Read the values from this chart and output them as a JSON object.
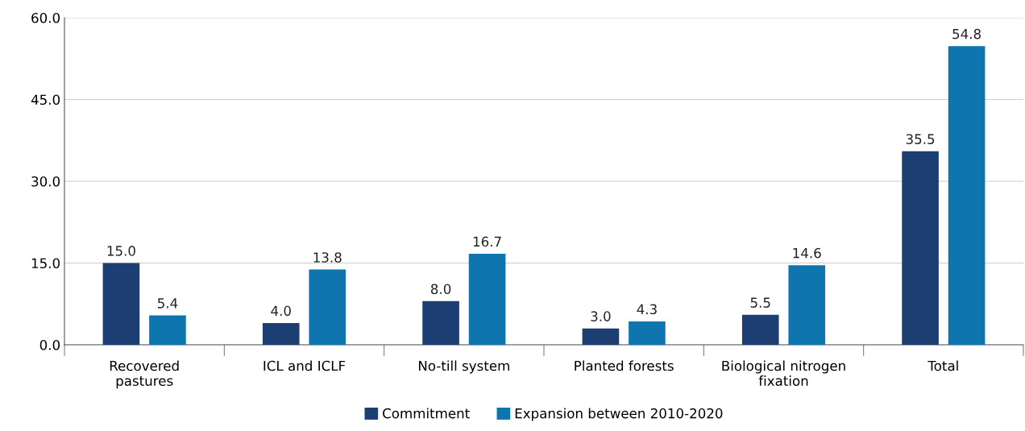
{
  "chart_data": {
    "type": "bar",
    "categories": [
      "Recovered\npastures",
      "ICL and ICLF",
      "No-till system",
      "Planted forests",
      "Biological nitrogen\nfixation",
      "Total"
    ],
    "series": [
      {
        "name": "Commitment",
        "color": "#1c3e72",
        "values": [
          15,
          4,
          8,
          3,
          5.5,
          35.5
        ],
        "value_labels": [
          "15.0",
          "4.0",
          "8.0",
          "3.0",
          "5.5",
          "35.5"
        ]
      },
      {
        "name": "Expansion between 2010-2020",
        "color": "#0e75af",
        "values": [
          5.4,
          13.8,
          16.7,
          4.3,
          14.6,
          54.8
        ],
        "value_labels": [
          "5.4",
          "13.8",
          "16.7",
          "4.3",
          "14.6",
          "54.8"
        ]
      }
    ],
    "ylim": [
      0,
      60
    ],
    "yticks": [
      {
        "value": 0,
        "label": "0.0"
      },
      {
        "value": 15,
        "label": "15.0"
      },
      {
        "value": 30,
        "label": "30.0"
      },
      {
        "value": 45,
        "label": "45.0"
      },
      {
        "value": 60,
        "label": "60.0"
      }
    ],
    "grid": "y",
    "legend": "bottom"
  }
}
